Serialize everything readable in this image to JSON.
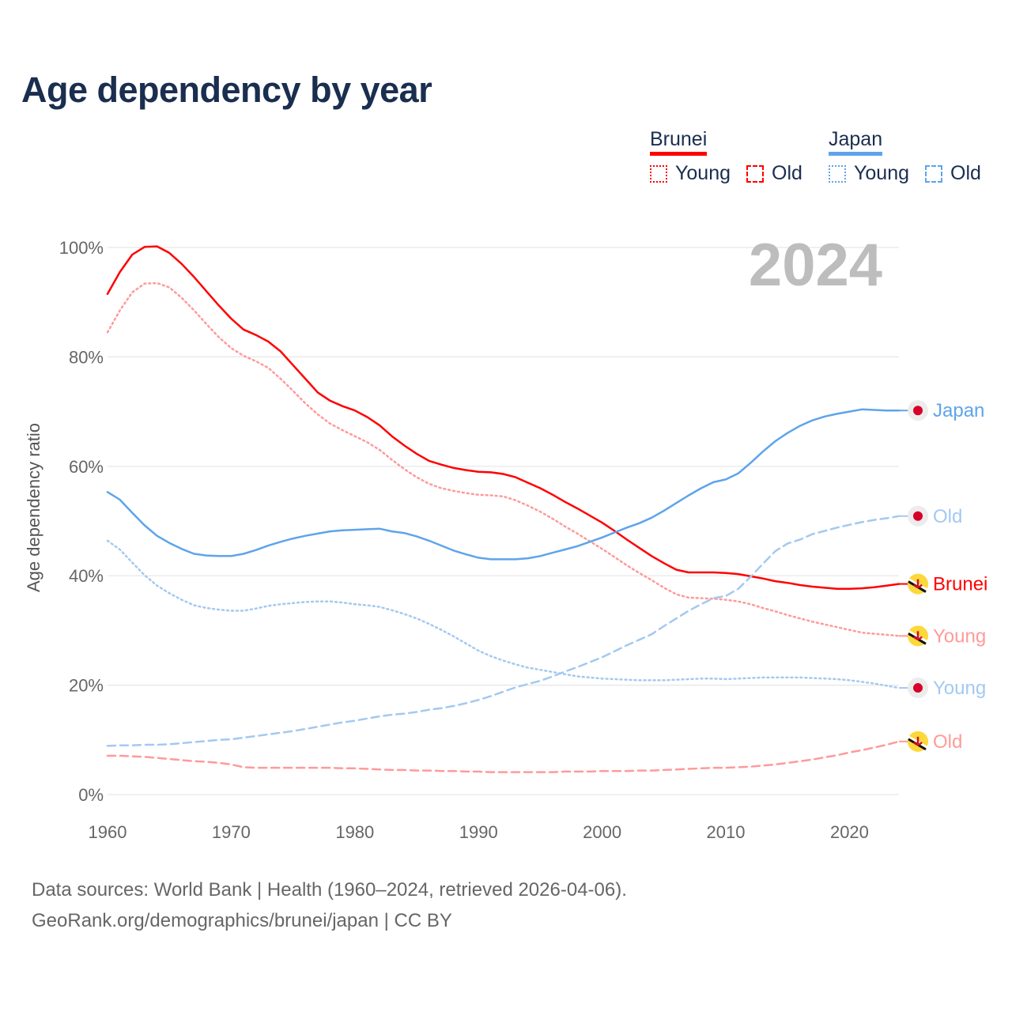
{
  "title": "Age dependency by year",
  "year_label": "2024",
  "legend": {
    "groups": [
      {
        "country": "Brunei",
        "color": "#ff0000",
        "light": "#ff9a9a",
        "items": [
          "Young",
          "Old"
        ]
      },
      {
        "country": "Japan",
        "color": "#5ea4ea",
        "light": "#a3c9f1",
        "items": [
          "Young",
          "Old"
        ]
      }
    ]
  },
  "footer": {
    "line1": "Data sources: World Bank | Health (1960–2024, retrieved 2026-04-06).",
    "line2": "GeoRank.org/demographics/brunei/japan | CC BY"
  },
  "chart_data": {
    "type": "line",
    "title": "Age dependency by year",
    "xlabel": "",
    "ylabel": "Age dependency ratio",
    "xlim": [
      1960,
      2024
    ],
    "ylim": [
      0,
      100
    ],
    "x_ticks": [
      "1960",
      "1970",
      "1980",
      "1990",
      "2000",
      "2010",
      "2020"
    ],
    "y_ticks": [
      "0%",
      "20%",
      "40%",
      "60%",
      "80%",
      "100%"
    ],
    "grid": true,
    "x_start": 1960,
    "series": [
      {
        "name": "Brunei",
        "label": "Brunei",
        "style": "solid",
        "color": "#ff0000",
        "flag": "brunei-flag",
        "values": [
          91.5,
          95.5,
          98.7,
          100.1,
          100.2,
          99.0,
          97.0,
          94.6,
          92.0,
          89.4,
          87.0,
          85.0,
          84.0,
          82.8,
          81.0,
          78.5,
          76.0,
          73.5,
          72.0,
          71.0,
          70.2,
          69.0,
          67.5,
          65.5,
          63.8,
          62.3,
          61.0,
          60.3,
          59.7,
          59.3,
          59.0,
          58.9,
          58.6,
          58.0,
          57.0,
          56.0,
          54.8,
          53.5,
          52.3,
          51.0,
          49.7,
          48.2,
          46.6,
          45.1,
          43.6,
          42.3,
          41.1,
          40.6,
          40.6,
          40.6,
          40.5,
          40.3,
          39.9,
          39.5,
          39.0,
          38.7,
          38.3,
          38.0,
          37.8,
          37.6,
          37.6,
          37.7,
          37.9,
          38.2,
          38.5
        ]
      },
      {
        "name": "Brunei Young",
        "label": "Young",
        "style": "dotted",
        "color": "#ff9a9a",
        "flag": "brunei-flag",
        "values": [
          84.5,
          88.5,
          91.8,
          93.4,
          93.5,
          92.7,
          90.8,
          88.5,
          86.0,
          83.6,
          81.6,
          80.2,
          79.2,
          78.0,
          76.0,
          73.8,
          71.5,
          69.5,
          67.8,
          66.6,
          65.5,
          64.4,
          63.0,
          61.2,
          59.5,
          58.0,
          56.8,
          56.0,
          55.5,
          55.1,
          54.8,
          54.7,
          54.5,
          53.8,
          52.8,
          51.7,
          50.4,
          49.0,
          47.7,
          46.3,
          44.9,
          43.4,
          41.9,
          40.5,
          39.2,
          37.8,
          36.6,
          36.0,
          35.9,
          35.8,
          35.6,
          35.3,
          34.8,
          34.1,
          33.5,
          32.8,
          32.2,
          31.6,
          31.1,
          30.6,
          30.1,
          29.6,
          29.4,
          29.2,
          29.0
        ]
      },
      {
        "name": "Brunei Old",
        "label": "Old",
        "style": "dashed",
        "color": "#ff9a9a",
        "flag": "brunei-flag",
        "values": [
          7.1,
          7.1,
          7.0,
          6.9,
          6.7,
          6.5,
          6.3,
          6.1,
          6.0,
          5.8,
          5.5,
          5.0,
          4.9,
          4.9,
          4.9,
          4.9,
          4.9,
          4.9,
          4.9,
          4.8,
          4.8,
          4.7,
          4.6,
          4.5,
          4.5,
          4.4,
          4.4,
          4.3,
          4.3,
          4.2,
          4.2,
          4.1,
          4.1,
          4.1,
          4.1,
          4.1,
          4.1,
          4.2,
          4.2,
          4.2,
          4.3,
          4.3,
          4.3,
          4.4,
          4.4,
          4.5,
          4.6,
          4.7,
          4.8,
          4.9,
          4.9,
          5.0,
          5.1,
          5.3,
          5.5,
          5.8,
          6.1,
          6.4,
          6.8,
          7.2,
          7.7,
          8.1,
          8.6,
          9.1,
          9.7
        ]
      },
      {
        "name": "Japan",
        "label": "Japan",
        "style": "solid",
        "color": "#5ea4ea",
        "flag": "japan-flag",
        "values": [
          55.3,
          53.9,
          51.5,
          49.2,
          47.3,
          46.0,
          44.9,
          44.0,
          43.7,
          43.6,
          43.6,
          44.0,
          44.7,
          45.5,
          46.2,
          46.8,
          47.3,
          47.7,
          48.1,
          48.3,
          48.4,
          48.5,
          48.6,
          48.1,
          47.8,
          47.2,
          46.4,
          45.5,
          44.6,
          43.9,
          43.3,
          43.0,
          43.0,
          43.0,
          43.2,
          43.6,
          44.2,
          44.8,
          45.4,
          46.2,
          47.0,
          47.9,
          48.8,
          49.6,
          50.6,
          51.9,
          53.3,
          54.7,
          56.0,
          57.1,
          57.6,
          58.7,
          60.6,
          62.7,
          64.6,
          66.1,
          67.4,
          68.4,
          69.1,
          69.6,
          70.0,
          70.4,
          70.3,
          70.2,
          70.2
        ]
      },
      {
        "name": "Japan Young",
        "label": "Young",
        "style": "dotted",
        "color": "#a3c9f1",
        "flag": "japan-flag",
        "values": [
          46.4,
          44.8,
          42.4,
          40.1,
          38.2,
          36.8,
          35.6,
          34.6,
          34.1,
          33.8,
          33.6,
          33.6,
          34.0,
          34.5,
          34.8,
          35.0,
          35.2,
          35.3,
          35.3,
          35.1,
          34.8,
          34.6,
          34.3,
          33.7,
          33.0,
          32.2,
          31.2,
          30.1,
          28.9,
          27.6,
          26.3,
          25.3,
          24.5,
          23.8,
          23.2,
          22.8,
          22.4,
          22.0,
          21.6,
          21.4,
          21.2,
          21.1,
          21.0,
          20.9,
          20.9,
          20.9,
          21.0,
          21.1,
          21.2,
          21.2,
          21.1,
          21.2,
          21.3,
          21.4,
          21.4,
          21.4,
          21.4,
          21.3,
          21.2,
          21.1,
          20.9,
          20.6,
          20.3,
          19.9,
          19.5
        ]
      },
      {
        "name": "Japan Old",
        "label": "Old",
        "style": "dashed",
        "color": "#a3c9f1",
        "flag": "japan-flag",
        "values": [
          8.9,
          9.0,
          9.0,
          9.1,
          9.1,
          9.2,
          9.4,
          9.6,
          9.8,
          10.0,
          10.1,
          10.4,
          10.7,
          11.0,
          11.3,
          11.6,
          12.0,
          12.4,
          12.8,
          13.2,
          13.5,
          13.9,
          14.3,
          14.6,
          14.8,
          15.1,
          15.5,
          15.8,
          16.2,
          16.7,
          17.3,
          18.0,
          18.8,
          19.6,
          20.2,
          20.8,
          21.6,
          22.5,
          23.3,
          24.2,
          25.1,
          26.2,
          27.3,
          28.3,
          29.3,
          30.8,
          32.2,
          33.6,
          34.8,
          35.9,
          36.3,
          37.6,
          39.8,
          42.2,
          44.5,
          45.9,
          46.6,
          47.6,
          48.2,
          48.8,
          49.3,
          49.8,
          50.2,
          50.5,
          50.9
        ]
      }
    ]
  }
}
